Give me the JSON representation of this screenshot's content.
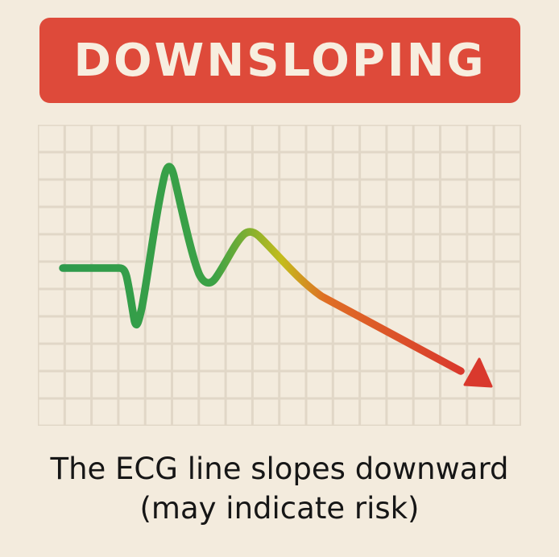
{
  "banner": {
    "title": "DOWNSLOPING",
    "background_color": "#de4a3a",
    "text_color": "#f7eedf"
  },
  "caption": {
    "line1": "The ECG line slopes downward",
    "line2": "(may indicate risk)"
  },
  "graph": {
    "background_color": "#f3ebdd",
    "grid_color": "#e1d7c7",
    "trace_gradient": [
      "#2e9a4c",
      "#3ca246",
      "#c4bc1c",
      "#df6e25",
      "#d9392d"
    ],
    "arrow_color": "#d9392d",
    "trace_icon": "ecg-downsloping-trace",
    "arrowhead_icon": "down-right-arrowhead"
  }
}
